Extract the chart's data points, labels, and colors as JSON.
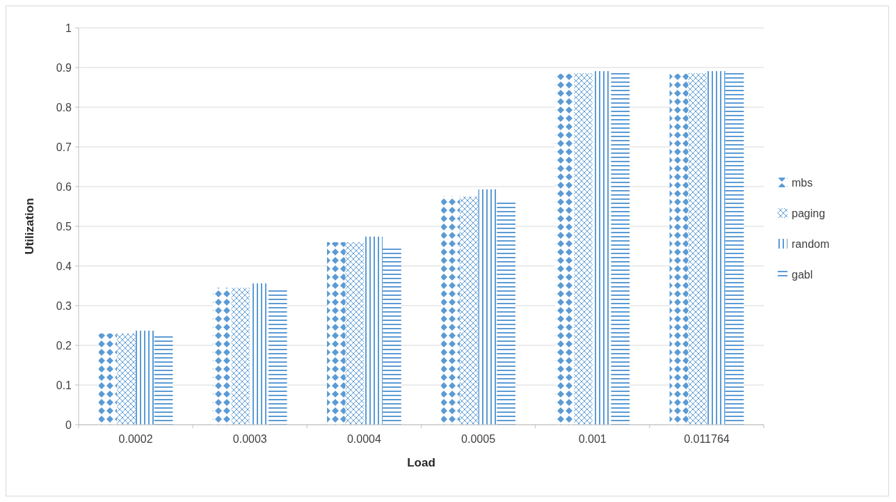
{
  "chart_data": {
    "type": "bar",
    "xlabel": "Load",
    "ylabel": "Utilization",
    "categories": [
      "0.0002",
      "0.0003",
      "0.0004",
      "0.0005",
      "0.001",
      "0.011764"
    ],
    "series": [
      {
        "name": "mbs",
        "color": "#5b9bd5",
        "values": [
          0.23,
          0.345,
          0.46,
          0.575,
          0.884,
          0.884
        ]
      },
      {
        "name": "paging",
        "color": "#5b9bd5",
        "values": [
          0.23,
          0.345,
          0.46,
          0.575,
          0.886,
          0.886
        ]
      },
      {
        "name": "random",
        "color": "#5b9bd5",
        "values": [
          0.237,
          0.356,
          0.474,
          0.593,
          0.891,
          0.891
        ]
      },
      {
        "name": "gabl",
        "color": "#5b9bd5",
        "values": [
          0.225,
          0.34,
          0.45,
          0.563,
          0.888,
          0.888
        ]
      }
    ],
    "ylim": [
      0,
      1
    ],
    "yticks": [
      0,
      0.1,
      0.2,
      0.3,
      0.4,
      0.5,
      0.6,
      0.7,
      0.8,
      0.9,
      1
    ],
    "grid": "y",
    "legend": "right"
  }
}
